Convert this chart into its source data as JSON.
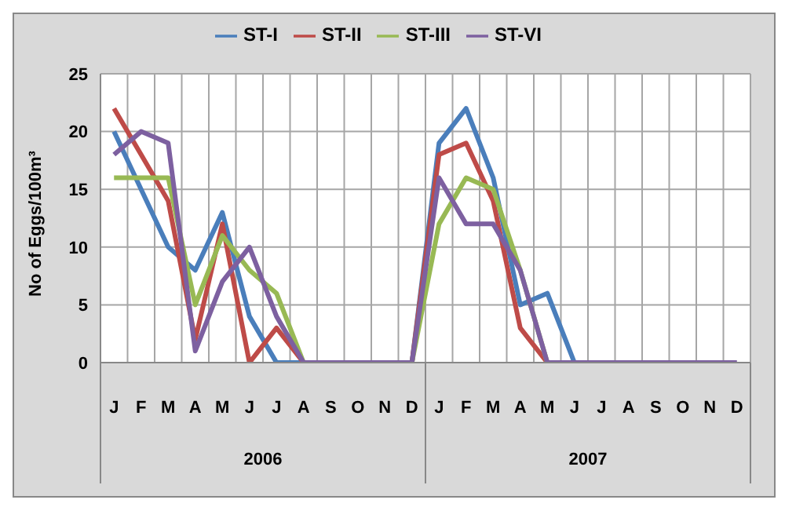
{
  "chart_data": {
    "type": "line",
    "ylabel": "No of Eggs/100m³",
    "categories": [
      "J",
      "F",
      "M",
      "A",
      "M",
      "J",
      "J",
      "A",
      "S",
      "O",
      "N",
      "D",
      "J",
      "F",
      "M",
      "A",
      "M",
      "J",
      "J",
      "A",
      "S",
      "O",
      "N",
      "D"
    ],
    "series": [
      {
        "name": "ST-I",
        "color": "#4a7ebb",
        "values": [
          20,
          15,
          10,
          8,
          13,
          4,
          0,
          0,
          0,
          0,
          0,
          0,
          19,
          22,
          16,
          5,
          6,
          0,
          0,
          null,
          null,
          null,
          null,
          null
        ]
      },
      {
        "name": "ST-II",
        "color": "#be4b48",
        "values": [
          22,
          18,
          14,
          2,
          12,
          0,
          3,
          0,
          0,
          0,
          0,
          0,
          18,
          19,
          14,
          3,
          0,
          0,
          null,
          null,
          null,
          null,
          null,
          null
        ]
      },
      {
        "name": "ST-III",
        "color": "#98b954",
        "values": [
          16,
          16,
          16,
          5,
          11,
          8,
          6,
          0,
          0,
          0,
          0,
          0,
          12,
          16,
          15,
          8,
          0,
          null,
          null,
          null,
          null,
          null,
          null,
          null
        ]
      },
      {
        "name": "ST-VI",
        "color": "#7d60a0",
        "values": [
          18,
          20,
          19,
          1,
          7,
          10,
          4,
          0,
          0,
          0,
          0,
          0,
          16,
          12,
          12,
          8,
          0,
          0,
          0,
          0,
          0,
          0,
          0,
          0
        ]
      }
    ],
    "annotations": [
      "2006",
      "2007"
    ],
    "ylim": [
      0,
      25
    ],
    "yticks": [
      0,
      5,
      10,
      15,
      20,
      25
    ],
    "grid": true,
    "legend": "top",
    "marker": "none",
    "line_style": "solid"
  }
}
